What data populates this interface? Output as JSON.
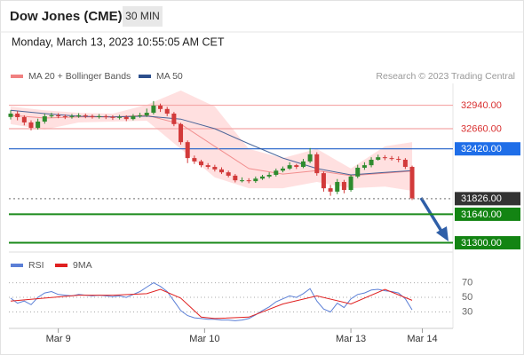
{
  "header": {
    "title": "Dow Jones (CME)",
    "timeframe": "30 MIN",
    "timestamp": "Monday, March 13, 2023 10:55:05 AM CET",
    "source": "Research © 2023 Trading Central"
  },
  "chart_data": [
    {
      "type": "candlestick",
      "xlim": [
        0,
        65
      ],
      "ylim": [
        31200,
        33200
      ],
      "up_color": "#2e8b2e",
      "down_color": "#d23a3a",
      "candles": {
        "open": [
          32800,
          32840,
          32798,
          32735,
          32670,
          32745,
          32808,
          32820,
          32808,
          32800,
          32810,
          32820,
          32810,
          32800,
          32810,
          32800,
          32790,
          32800,
          32775,
          32810,
          32820,
          32850,
          32935,
          32895,
          32840,
          32715,
          32500,
          32310,
          32270,
          32225,
          32205,
          32175,
          32140,
          32100,
          32045,
          32045,
          32035,
          32065,
          32090,
          32110,
          32160,
          32185,
          32225,
          32205,
          32270,
          32355,
          32130,
          31950,
          31910,
          32025,
          31930,
          32090,
          32195,
          32225,
          32290,
          32320,
          32310,
          32300,
          32290,
          32205
        ],
        "high": [
          32880,
          32870,
          32820,
          32760,
          32780,
          32840,
          32850,
          32845,
          32830,
          32835,
          32845,
          32840,
          32830,
          32835,
          32830,
          32820,
          32825,
          32820,
          32835,
          32850,
          32900,
          32990,
          32960,
          32920,
          32860,
          32730,
          32520,
          32340,
          32290,
          32250,
          32230,
          32200,
          32160,
          32120,
          32080,
          32070,
          32090,
          32110,
          32140,
          32185,
          32210,
          32260,
          32240,
          32300,
          32430,
          32380,
          32150,
          31990,
          32060,
          32050,
          32110,
          32230,
          32260,
          32320,
          32350,
          32345,
          32335,
          32330,
          32310,
          32220
        ],
        "low": [
          32770,
          32760,
          32700,
          32640,
          32650,
          32720,
          32790,
          32785,
          32775,
          32780,
          32790,
          32785,
          32780,
          32780,
          32775,
          32765,
          32770,
          32750,
          32760,
          32790,
          32800,
          32830,
          32860,
          32810,
          32690,
          32470,
          32250,
          32240,
          32200,
          32180,
          32150,
          32120,
          32080,
          32020,
          32020,
          32010,
          32015,
          32050,
          32070,
          32090,
          32140,
          32170,
          32180,
          32190,
          32250,
          32100,
          31910,
          31860,
          31880,
          31890,
          31910,
          32070,
          32170,
          32200,
          32280,
          32285,
          32280,
          32260,
          32180,
          31810
        ],
        "close": [
          32840,
          32798,
          32735,
          32670,
          32745,
          32808,
          32820,
          32808,
          32800,
          32810,
          32820,
          32810,
          32800,
          32810,
          32800,
          32790,
          32800,
          32775,
          32810,
          32820,
          32850,
          32935,
          32895,
          32840,
          32715,
          32500,
          32310,
          32270,
          32225,
          32205,
          32175,
          32140,
          32100,
          32045,
          32045,
          32035,
          32065,
          32090,
          32110,
          32160,
          32185,
          32225,
          32205,
          32270,
          32355,
          32130,
          31950,
          31910,
          32025,
          31930,
          32090,
          32195,
          32225,
          32290,
          32320,
          32310,
          32300,
          32290,
          32205,
          31830
        ]
      },
      "series": [
        {
          "name": "MA 20 + Bollinger Bands",
          "color": "#f08080",
          "band_color": "#ffd6d6",
          "x": [
            0,
            5,
            10,
            15,
            20,
            25,
            30,
            35,
            40,
            45,
            50,
            55,
            59
          ],
          "values": [
            32820,
            32787,
            32800,
            32800,
            32820,
            32715,
            32450,
            32185,
            32120,
            32160,
            32100,
            32130,
            32155
          ],
          "upper": [
            32925,
            32880,
            32850,
            32840,
            32945,
            33115,
            32925,
            32420,
            32310,
            32420,
            32185,
            32450,
            32500
          ],
          "lower": [
            32715,
            32650,
            32735,
            32745,
            32755,
            32420,
            32080,
            31950,
            31950,
            32025,
            31950,
            31970,
            31920
          ]
        },
        {
          "name": "MA 50",
          "color": "#2c4f8c",
          "x": [
            0,
            5,
            10,
            15,
            20,
            25,
            30,
            35,
            40,
            45,
            50,
            55,
            59
          ],
          "values": [
            32880,
            32840,
            32808,
            32800,
            32810,
            32775,
            32660,
            32480,
            32310,
            32185,
            32110,
            32140,
            32160
          ]
        }
      ],
      "levels": [
        {
          "value": 32940,
          "label": "32940.00",
          "color": "#f4a6a6",
          "text_color": "#d93030",
          "box": false
        },
        {
          "value": 32660,
          "label": "32660.00",
          "color": "#f4a6a6",
          "text_color": "#d93030",
          "box": false
        },
        {
          "value": 32420,
          "label": "32420.00",
          "color": "#1f5fc8",
          "text_color": "#ffffff",
          "box": true,
          "box_color": "#1f6ee8"
        },
        {
          "value": 31826,
          "label": "31826.00",
          "color": "#888888",
          "text_color": "#ffffff",
          "box": true,
          "box_color": "#333333",
          "dash": true
        },
        {
          "value": 31640,
          "label": "31640.00",
          "color": "#1a8a1a",
          "text_color": "#ffffff",
          "box": true,
          "box_color": "#138413"
        },
        {
          "value": 31300,
          "label": "31300.00",
          "color": "#1a8a1a",
          "text_color": "#ffffff",
          "box": true,
          "box_color": "#138413"
        }
      ]
    },
    {
      "type": "line",
      "xlim": [
        0,
        65
      ],
      "ylim": [
        10,
        95
      ],
      "yticks": [
        70,
        50,
        30
      ],
      "grid": true,
      "xticks": [
        {
          "value": 7,
          "label": "Mar 9"
        },
        {
          "value": 28.5,
          "label": "Mar 10"
        },
        {
          "value": 50,
          "label": "Mar 13"
        },
        {
          "value": 60.5,
          "label": "Mar 14"
        }
      ],
      "series": [
        {
          "name": "RSI",
          "color": "#5b7fd6",
          "x": [
            0,
            1,
            2,
            3,
            4,
            5,
            6,
            7,
            8,
            9,
            10,
            11,
            12,
            13,
            14,
            15,
            16,
            17,
            18,
            19,
            20,
            21,
            22,
            23,
            24,
            25,
            26,
            27,
            28,
            29,
            30,
            31,
            32,
            33,
            34,
            35,
            36,
            37,
            38,
            39,
            40,
            41,
            42,
            43,
            44,
            45,
            46,
            47,
            48,
            49,
            50,
            51,
            52,
            53,
            54,
            55,
            56,
            57,
            58,
            59
          ],
          "values": [
            49,
            42,
            45,
            40,
            50,
            56,
            58,
            54,
            53,
            52,
            54,
            53,
            52,
            53,
            52,
            51,
            52,
            50,
            54,
            58,
            64,
            70,
            65,
            58,
            45,
            32,
            25,
            22,
            21,
            20,
            20,
            19,
            19,
            18,
            19,
            21,
            26,
            32,
            37,
            44,
            48,
            52,
            50,
            55,
            62,
            45,
            34,
            30,
            42,
            36,
            48,
            54,
            56,
            60,
            61,
            59,
            58,
            56,
            48,
            33
          ]
        },
        {
          "name": "9MA",
          "color": "#e02020",
          "x": [
            0,
            5,
            10,
            15,
            20,
            22,
            25,
            28,
            30,
            35,
            40,
            45,
            50,
            55,
            59
          ],
          "values": [
            45,
            49,
            53,
            53,
            55,
            61,
            49,
            23,
            21,
            23,
            41,
            52,
            41,
            61,
            46
          ]
        }
      ]
    }
  ]
}
